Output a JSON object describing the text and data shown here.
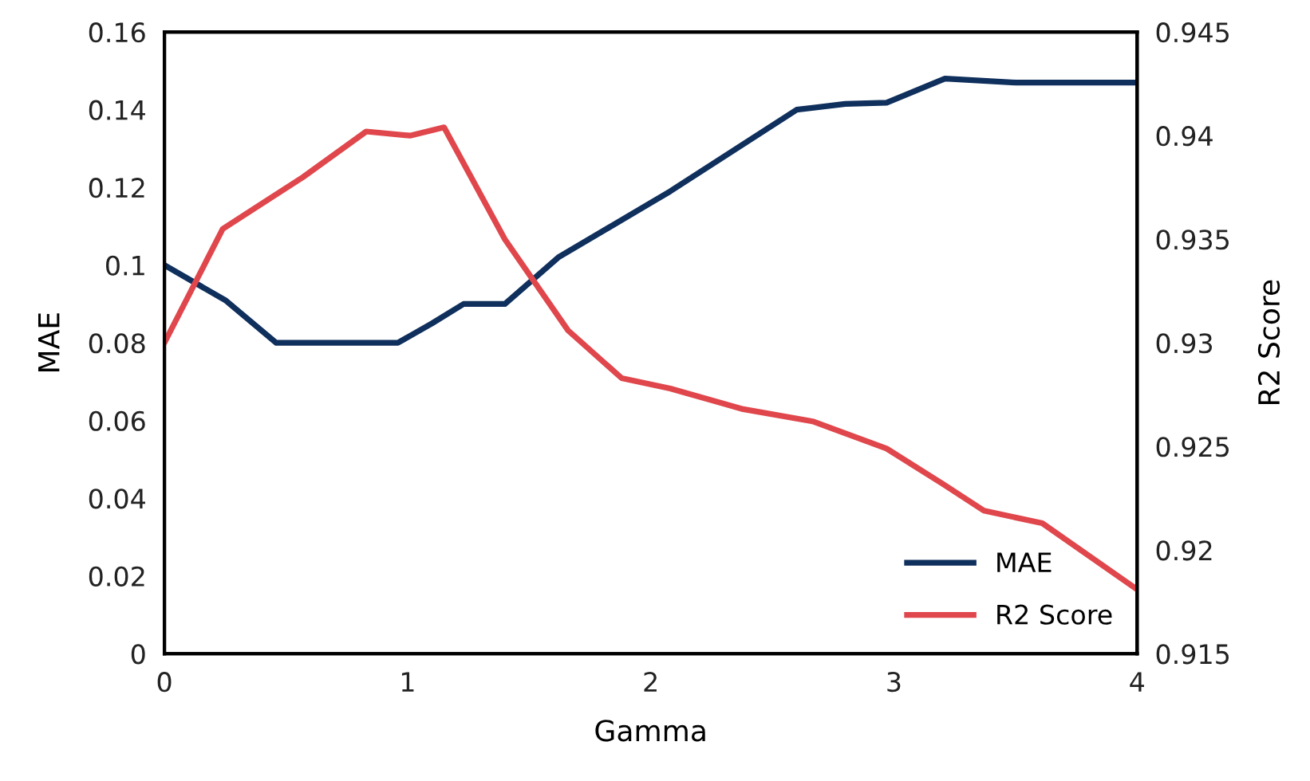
{
  "chart_data": {
    "type": "line",
    "xlabel": "Gamma",
    "ylabel": "MAE",
    "y2label": "R2 Score",
    "xlim": [
      0,
      4
    ],
    "xticks": [
      0,
      1,
      2,
      3,
      4
    ],
    "ylim": [
      0,
      0.16
    ],
    "yticks": [
      0,
      0.02,
      0.04,
      0.06,
      0.08,
      0.1,
      0.12,
      0.14,
      0.16
    ],
    "y2lim": [
      0.915,
      0.945
    ],
    "y2ticks": [
      0.915,
      0.92,
      0.925,
      0.93,
      0.935,
      0.94,
      0.945
    ],
    "grid": false,
    "legend": "bottom right",
    "marker": "none",
    "line_style": "solid",
    "series": [
      {
        "name": "MAE",
        "color": "#0f2f5c",
        "x": [
          0,
          0.25,
          0.46,
          0.75,
          0.96,
          1.1,
          1.23,
          1.4,
          1.62,
          2.08,
          2.6,
          2.8,
          2.97,
          3.21,
          3.5,
          4
        ],
        "values": [
          0.1,
          0.091,
          0.08,
          0.08,
          0.08,
          0.085,
          0.09,
          0.09,
          0.102,
          0.119,
          0.14,
          0.1415,
          0.1418,
          0.148,
          0.147,
          0.147
        ]
      },
      {
        "name": "R2 Score",
        "color": "#e0474c",
        "axis": "y2",
        "x": [
          0,
          0.24,
          0.57,
          0.83,
          1.01,
          1.15,
          1.4,
          1.66,
          1.88,
          2.08,
          2.38,
          2.67,
          2.97,
          3.2,
          3.37,
          3.61,
          4
        ],
        "values": [
          0.93,
          0.9355,
          0.938,
          0.9402,
          0.94,
          0.9404,
          0.935,
          0.9306,
          0.9283,
          0.9278,
          0.9268,
          0.9262,
          0.9249,
          0.9232,
          0.9219,
          0.9213,
          0.9181
        ]
      }
    ]
  }
}
